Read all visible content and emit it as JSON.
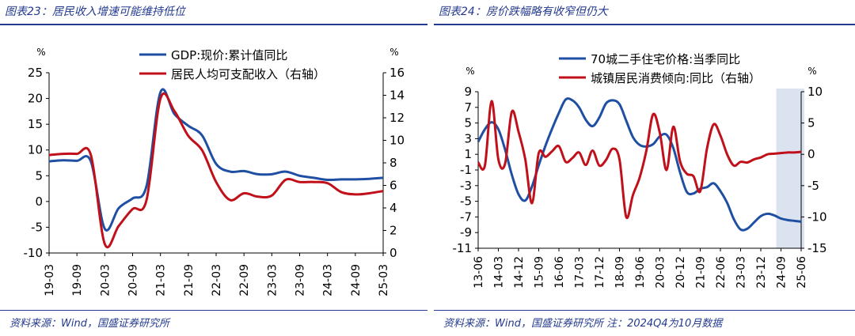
{
  "figure_left": {
    "title": "图表23：居民收入增速可能维持低位",
    "source": "资料来源：Wind，国盛证券研究所"
  },
  "figure_right": {
    "title": "图表24：房价跌幅略有收窄但仍大",
    "source": "资料来源：Wind，国盛证券研究所 注：2024Q4为10月数据"
  },
  "colors": {
    "blue": "#1f4fa3",
    "red": "#c0101a",
    "shade": "#dbe3f1",
    "accent": "#233a8f"
  },
  "chart_data": [
    {
      "type": "line",
      "left_unit": "%",
      "right_unit": "%",
      "x_ticks": [
        "19-03",
        "19-09",
        "20-03",
        "20-09",
        "21-03",
        "21-09",
        "22-03",
        "22-09",
        "23-03",
        "23-09",
        "24-03",
        "24-09",
        "25-03"
      ],
      "ylim_left": [
        -10,
        25
      ],
      "yticks_left": [
        -10,
        -5,
        0,
        5,
        10,
        15,
        20,
        25
      ],
      "ylim_right": [
        0,
        16
      ],
      "yticks_right": [
        0,
        2,
        4,
        6,
        8,
        10,
        12,
        14,
        16
      ],
      "legend_position": "top-center",
      "series": [
        {
          "name": "GDP:现价:累计值同比",
          "axis": "left",
          "color": "#1f4fa3",
          "x": [
            "19-03",
            "19-06",
            "19-09",
            "19-12",
            "20-03",
            "20-06",
            "20-09",
            "20-12",
            "21-03",
            "21-06",
            "21-09",
            "21-12",
            "22-03",
            "22-06",
            "22-09",
            "22-12",
            "23-03",
            "23-06",
            "23-09",
            "23-12",
            "24-03",
            "24-06",
            "24-09",
            "24-12",
            "25-03"
          ],
          "values": [
            7.8,
            8.0,
            7.9,
            7.8,
            -5.3,
            -1.3,
            0.6,
            3.0,
            21.2,
            17.0,
            14.7,
            12.8,
            7.3,
            5.8,
            5.9,
            5.3,
            5.3,
            5.8,
            5.0,
            4.6,
            4.2,
            4.3,
            4.3,
            4.4,
            4.6
          ]
        },
        {
          "name": "居民人均可支配收入（右轴）",
          "axis": "right",
          "color": "#c0101a",
          "x": [
            "19-03",
            "19-06",
            "19-09",
            "19-12",
            "20-03",
            "20-06",
            "20-09",
            "20-12",
            "21-03",
            "21-06",
            "21-09",
            "21-12",
            "22-03",
            "22-06",
            "22-09",
            "22-12",
            "23-03",
            "23-06",
            "23-09",
            "23-12",
            "24-03",
            "24-06",
            "24-09",
            "24-12",
            "25-03"
          ],
          "values": [
            8.7,
            8.8,
            8.8,
            8.7,
            0.8,
            2.4,
            3.9,
            4.7,
            13.7,
            12.6,
            10.4,
            9.1,
            6.3,
            4.7,
            5.3,
            5.0,
            5.1,
            6.5,
            6.3,
            6.3,
            6.2,
            5.4,
            5.2,
            5.3,
            5.5
          ]
        }
      ]
    },
    {
      "type": "line",
      "left_unit": "%",
      "right_unit": "%",
      "x_ticks": [
        "13-06",
        "14-03",
        "14-12",
        "15-09",
        "16-06",
        "17-03",
        "17-12",
        "18-09",
        "19-06",
        "20-03",
        "20-12",
        "21-09",
        "22-06",
        "23-03",
        "23-12",
        "24-09",
        "25-06"
      ],
      "ylim_left": [
        -11,
        9
      ],
      "yticks_left": [
        -11,
        -9,
        -7,
        -5,
        -3,
        -1,
        1,
        3,
        5,
        7,
        9
      ],
      "ylim_right": [
        -15,
        10
      ],
      "yticks_right": [
        -15,
        -10,
        -5,
        0,
        5,
        10
      ],
      "shaded_period": [
        "24-09",
        "25-06"
      ],
      "legend_position": "top-center",
      "series": [
        {
          "name": "70城二手住宅价格:当季同比",
          "axis": "left",
          "color": "#1f4fa3",
          "x": [
            "13-06",
            "13-09",
            "13-12",
            "14-03",
            "14-06",
            "14-09",
            "14-12",
            "15-03",
            "15-06",
            "15-09",
            "15-12",
            "16-03",
            "16-06",
            "16-09",
            "16-12",
            "17-03",
            "17-06",
            "17-09",
            "17-12",
            "18-03",
            "18-06",
            "18-09",
            "18-12",
            "19-03",
            "19-06",
            "19-09",
            "19-12",
            "20-03",
            "20-06",
            "20-09",
            "20-12",
            "21-03",
            "21-06",
            "21-09",
            "21-12",
            "22-03",
            "22-06",
            "22-09",
            "22-12",
            "23-03",
            "23-06",
            "23-09",
            "23-12",
            "24-03",
            "24-06",
            "24-09",
            "24-12",
            "25-03",
            "25-06"
          ],
          "values": [
            2.6,
            4.2,
            5.1,
            4.2,
            1.6,
            -1.6,
            -4.1,
            -4.9,
            -3.1,
            -0.4,
            2.1,
            4.3,
            6.3,
            8.0,
            7.9,
            7.0,
            5.4,
            4.6,
            5.7,
            7.5,
            7.9,
            7.4,
            5.3,
            3.2,
            2.2,
            2.0,
            2.3,
            3.3,
            3.5,
            1.8,
            -1.3,
            -3.8,
            -4.0,
            -3.4,
            -3.2,
            -2.7,
            -3.7,
            -5.2,
            -7.3,
            -8.6,
            -8.5,
            -7.7,
            -6.9,
            -6.6,
            -6.8,
            -7.2,
            -7.4,
            -7.5,
            -7.6
          ]
        },
        {
          "name": "城镇居民消费倾向:同比（右轴）",
          "axis": "right",
          "color": "#c0101a",
          "x": [
            "13-06",
            "13-09",
            "13-12",
            "14-03",
            "14-06",
            "14-09",
            "14-12",
            "15-03",
            "15-06",
            "15-09",
            "15-12",
            "16-03",
            "16-06",
            "16-09",
            "16-12",
            "17-03",
            "17-06",
            "17-09",
            "17-12",
            "18-03",
            "18-06",
            "18-09",
            "18-12",
            "19-03",
            "19-06",
            "19-09",
            "19-12",
            "20-03",
            "20-06",
            "20-09",
            "20-12",
            "21-03",
            "21-06",
            "21-09",
            "21-12",
            "22-03",
            "22-06",
            "22-09",
            "22-12",
            "23-03",
            "23-06",
            "23-09",
            "23-12",
            "24-03",
            "24-06",
            "24-09",
            "24-12",
            "25-03",
            "25-06"
          ],
          "values": [
            -1.3,
            -1.8,
            8.5,
            -0.8,
            -1.5,
            6.8,
            3.6,
            -0.8,
            -7.8,
            0.2,
            -0.4,
            0.5,
            1.3,
            -1.2,
            -0.6,
            0.3,
            -1.7,
            0.6,
            -1.8,
            -0.9,
            0.9,
            -0.8,
            -10.0,
            -6.5,
            -3.7,
            0.6,
            6.4,
            3.4,
            -2.5,
            4.4,
            -1.1,
            -3.1,
            -3.5,
            -5.9,
            0.9,
            4.8,
            3.0,
            0.0,
            -1.8,
            -1.2,
            -1.3,
            -0.8,
            -0.5,
            0.0,
            0.1,
            0.2,
            0.3,
            0.3,
            0.4
          ]
        }
      ]
    }
  ]
}
